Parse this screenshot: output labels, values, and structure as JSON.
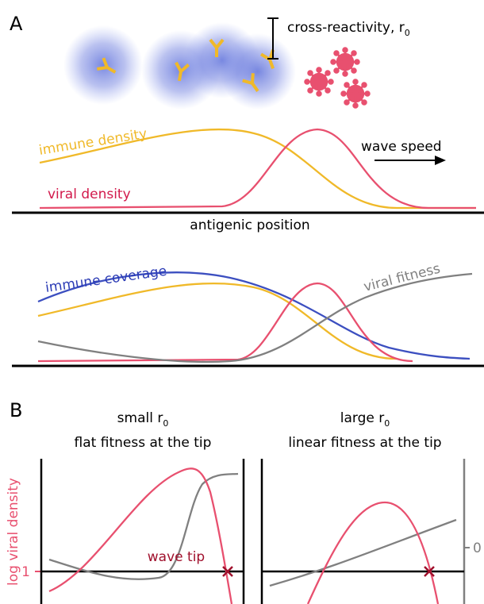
{
  "panel_a": {
    "label": "A",
    "cross_reactivity": {
      "text": "cross-reactivity, r",
      "subscript": "0"
    },
    "top": {
      "immune_density": "immune density",
      "viral_density": "viral density",
      "wave_speed": "wave speed"
    },
    "axis_label": "antigenic position",
    "bottom": {
      "immune_coverage": "immune coverage",
      "viral_fitness": "viral fitness"
    }
  },
  "panel_b": {
    "label": "B",
    "left": {
      "title": {
        "text": "small r",
        "subscript": "0"
      },
      "subtitle": "flat fitness at the tip",
      "annotation": "wave tip"
    },
    "right": {
      "title": {
        "text": "large r",
        "subscript": "0"
      },
      "subtitle": "linear fitness at the tip"
    },
    "y_label": "log viral density",
    "left_tick": "1",
    "right_tick": "0"
  }
}
